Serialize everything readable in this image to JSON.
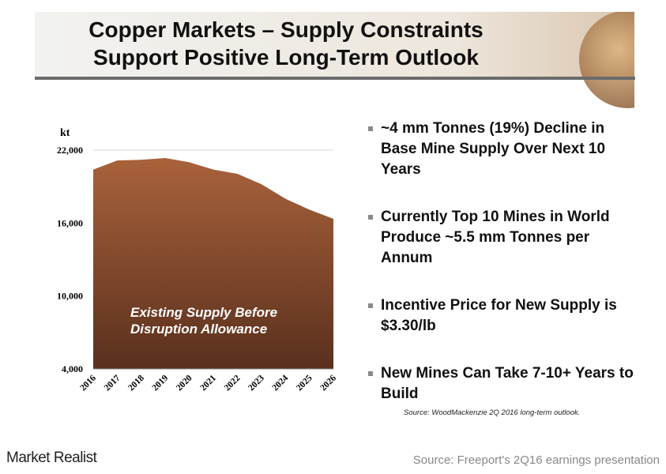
{
  "header": {
    "title": [
      "Copper Markets – Supply Constraints",
      "Support Positive Long-Term Outlook"
    ]
  },
  "chart_data": {
    "type": "area",
    "ylabel": "kt",
    "categories": [
      "2016",
      "2017",
      "2018",
      "2019",
      "2020",
      "2021",
      "2022",
      "2023",
      "2024",
      "2025",
      "2026"
    ],
    "values": [
      20400,
      21150,
      21200,
      21350,
      21000,
      20400,
      20050,
      19200,
      18000,
      17100,
      16350
    ],
    "color_top": "#a9623b",
    "color_bottom": "#5a301e",
    "ylim": [
      4000,
      22000
    ],
    "yticks": [
      {
        "value": 4000,
        "label": "4,000"
      },
      {
        "value": 10000,
        "label": "10,000"
      },
      {
        "value": 16000,
        "label": "16,000"
      },
      {
        "value": 22000,
        "label": "22,000"
      }
    ],
    "grid": true,
    "annotation": [
      "Existing Supply Before",
      "Disruption Allowance"
    ]
  },
  "bullets": [
    "~4 mm Tonnes (19%) Decline in Base Mine Supply Over Next 10 Years",
    "Currently Top 10 Mines in World Produce ~5.5 mm Tonnes per Annum",
    "Incentive Price for New Supply is $3.30/lb",
    "New Mines Can Take 7-10+ Years to Build"
  ],
  "chart_source": "Source: WoodMackenzie 2Q 2016 long-term outlook.",
  "footer": {
    "brand": "Market Realist",
    "source": "Source: Freeport's 2Q16 earnings presentation"
  }
}
